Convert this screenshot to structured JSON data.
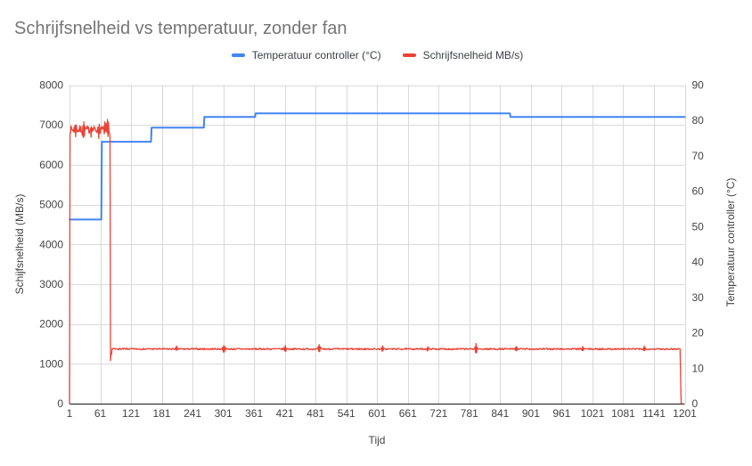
{
  "title": "Schrijfsnelheid vs temperatuur, zonder fan",
  "legend": [
    {
      "label": "Temperatuur controller (°C)",
      "color": "#4285f4"
    },
    {
      "label": "Schrijfsnelheid MB/s)",
      "color": "#ea4335"
    }
  ],
  "colors": {
    "title": "#757575",
    "tick_labels": "#444444",
    "gridline": "#d9d9d9",
    "baseline": "#333333",
    "temperature_series": "#4285f4",
    "write_speed_series": "#ea4335"
  },
  "chart_data": {
    "type": "line",
    "title": "Schrijfsnelheid vs temperatuur, zonder fan",
    "xlabel": "Tijd",
    "ylabel_left": "Schijfsnelheid (MB/s)",
    "ylabel_right": "Temperatuur controller (°C)",
    "x_axis": {
      "min": 1,
      "max": 1201,
      "ticks": [
        1,
        61,
        121,
        181,
        241,
        301,
        361,
        421,
        481,
        541,
        601,
        661,
        721,
        781,
        841,
        901,
        961,
        1021,
        1081,
        1141,
        1201
      ]
    },
    "y_left": {
      "min": 0,
      "max": 8000,
      "ticks": [
        0,
        1000,
        2000,
        3000,
        4000,
        5000,
        6000,
        7000,
        8000
      ]
    },
    "y_right": {
      "min": 0,
      "max": 90,
      "ticks": [
        0,
        10,
        20,
        30,
        40,
        50,
        60,
        70,
        80,
        90
      ]
    },
    "grid": true,
    "legend_position": "top-center",
    "series": [
      {
        "name": "Temperatuur controller (°C)",
        "axis": "right",
        "color": "#4285f4",
        "stroke_width": 2,
        "kind": "breakpoints",
        "points": [
          [
            1,
            52
          ],
          [
            63,
            52
          ],
          [
            64,
            74
          ],
          [
            160,
            74
          ],
          [
            161,
            78
          ],
          [
            263,
            78
          ],
          [
            264,
            81
          ],
          [
            363,
            81
          ],
          [
            364,
            82
          ],
          [
            860,
            82
          ],
          [
            861,
            81
          ],
          [
            1201,
            81
          ]
        ]
      },
      {
        "name": "Schrijfsnelheid MB/s)",
        "axis": "left",
        "color": "#ea4335",
        "stroke_width": 1.3,
        "kind": "noisy-segments",
        "segments": [
          {
            "from": 1,
            "to": 1,
            "value": 0
          },
          {
            "from": 2,
            "to": 79,
            "value": 6880,
            "noise": 95
          },
          {
            "from": 80,
            "to": 80,
            "value": 6700
          },
          {
            "from": 81,
            "to": 81,
            "value": 1080
          },
          {
            "from": 82,
            "to": 83,
            "value": 1250,
            "noise": 30
          },
          {
            "from": 84,
            "to": 1192,
            "value": 1372,
            "noise": 19
          },
          {
            "from": 1193,
            "to": 1193,
            "value": 600
          },
          {
            "from": 1194,
            "to": 1196,
            "value": 5
          }
        ],
        "spikes": [
          {
            "x": 12,
            "amp": 160
          },
          {
            "x": 28,
            "amp": -210
          },
          {
            "x": 44,
            "amp": 150
          },
          {
            "x": 58,
            "amp": -160
          },
          {
            "x": 70,
            "amp": 170
          },
          {
            "x": 76,
            "amp": -260
          },
          {
            "x": 210,
            "amp": 60
          },
          {
            "x": 302,
            "amp": 95
          },
          {
            "x": 422,
            "amp": 75
          },
          {
            "x": 488,
            "amp": 115
          },
          {
            "x": 612,
            "amp": 65
          },
          {
            "x": 700,
            "amp": 55
          },
          {
            "x": 794,
            "amp": 150
          },
          {
            "x": 872,
            "amp": 65
          },
          {
            "x": 1002,
            "amp": 55
          },
          {
            "x": 1122,
            "amp": 65
          }
        ]
      }
    ]
  }
}
